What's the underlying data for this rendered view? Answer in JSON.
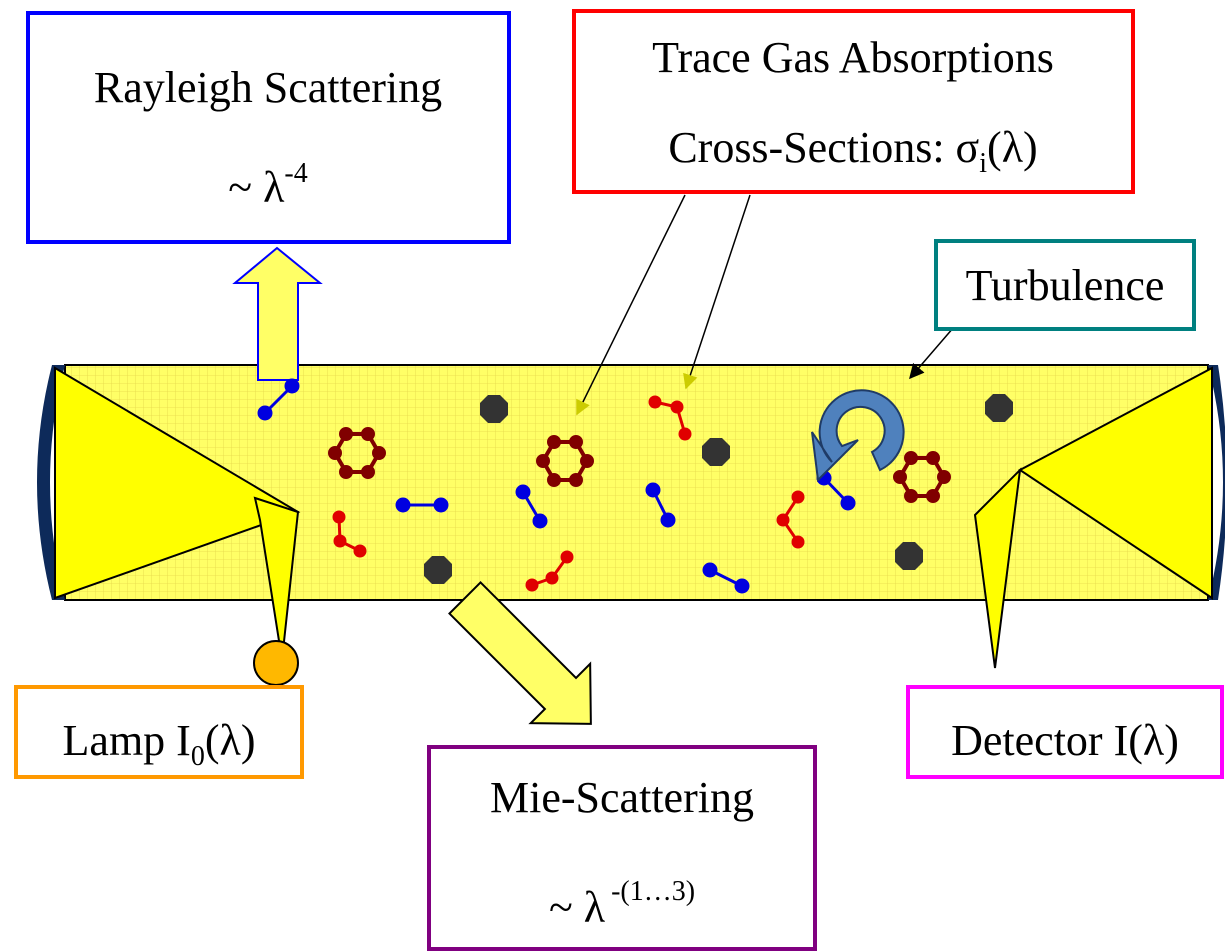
{
  "rayleigh": {
    "title": "Rayleigh Scattering",
    "formula": "~ λ",
    "exponent": "-4"
  },
  "trace_gas": {
    "title": "Trace Gas Absorptions",
    "formula_prefix": "Cross-Sections: σ",
    "subscript": "i",
    "formula_suffix": "(λ)"
  },
  "turbulence": {
    "label": "Turbulence"
  },
  "lamp": {
    "prefix": "Lamp I",
    "subscript": "0",
    "suffix": "(λ)"
  },
  "mie": {
    "title": "Mie-Scattering",
    "formula": "~ λ",
    "exponent": "-(1…3)"
  },
  "detector": {
    "label": "Detector I(λ)"
  }
}
